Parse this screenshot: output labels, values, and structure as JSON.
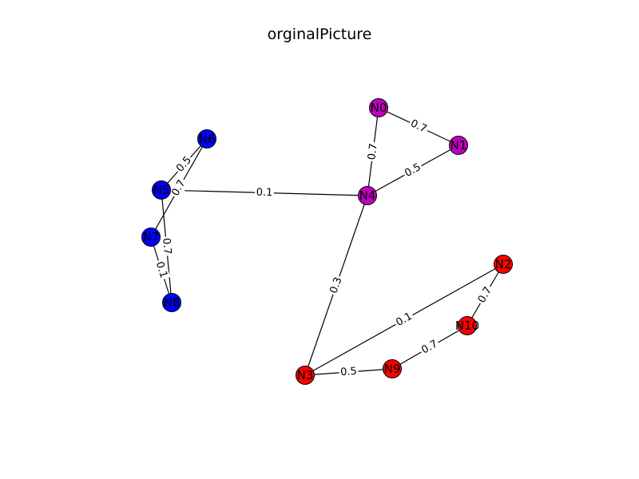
{
  "title": "orginalPicture",
  "colors": {
    "blue": "#0000ff",
    "purple": "#bf00bf",
    "red": "#ff0000",
    "edge": "#000000"
  },
  "nodes": [
    {
      "id": "N0",
      "label": "N0",
      "color": "#bf00bf"
    },
    {
      "id": "N1",
      "label": "N1",
      "color": "#bf00bf"
    },
    {
      "id": "N2",
      "label": "N2",
      "color": "#ff0000"
    },
    {
      "id": "N3",
      "label": "N3",
      "color": "#ff0000"
    },
    {
      "id": "N4",
      "label": "N4",
      "color": "#bf00bf"
    },
    {
      "id": "N5",
      "label": "N5",
      "color": "#0000ff"
    },
    {
      "id": "N6",
      "label": "N6",
      "color": "#0000ff"
    },
    {
      "id": "N7",
      "label": "N7",
      "color": "#0000ff"
    },
    {
      "id": "N8",
      "label": "N8",
      "color": "#0000ff"
    },
    {
      "id": "N9",
      "label": "N9",
      "color": "#ff0000"
    },
    {
      "id": "N10",
      "label": "N10",
      "color": "#ff0000"
    }
  ],
  "edges": [
    {
      "source": "N0",
      "target": "N1",
      "weight": "0.7"
    },
    {
      "source": "N0",
      "target": "N4",
      "weight": "0.7"
    },
    {
      "source": "N1",
      "target": "N4",
      "weight": "0.5"
    },
    {
      "source": "N4",
      "target": "N5",
      "weight": "0.1"
    },
    {
      "source": "N4",
      "target": "N3",
      "weight": "0.3"
    },
    {
      "source": "N5",
      "target": "N6",
      "weight": "0.5"
    },
    {
      "source": "N6",
      "target": "N7",
      "weight": "0.7"
    },
    {
      "source": "N5",
      "target": "N8",
      "weight": "0.7"
    },
    {
      "source": "N7",
      "target": "N8",
      "weight": "0.1"
    },
    {
      "source": "N3",
      "target": "N2",
      "weight": "0.1"
    },
    {
      "source": "N3",
      "target": "N9",
      "weight": "0.5"
    },
    {
      "source": "N9",
      "target": "N10",
      "weight": "0.7"
    },
    {
      "source": "N10",
      "target": "N2",
      "weight": "0.7"
    }
  ]
}
